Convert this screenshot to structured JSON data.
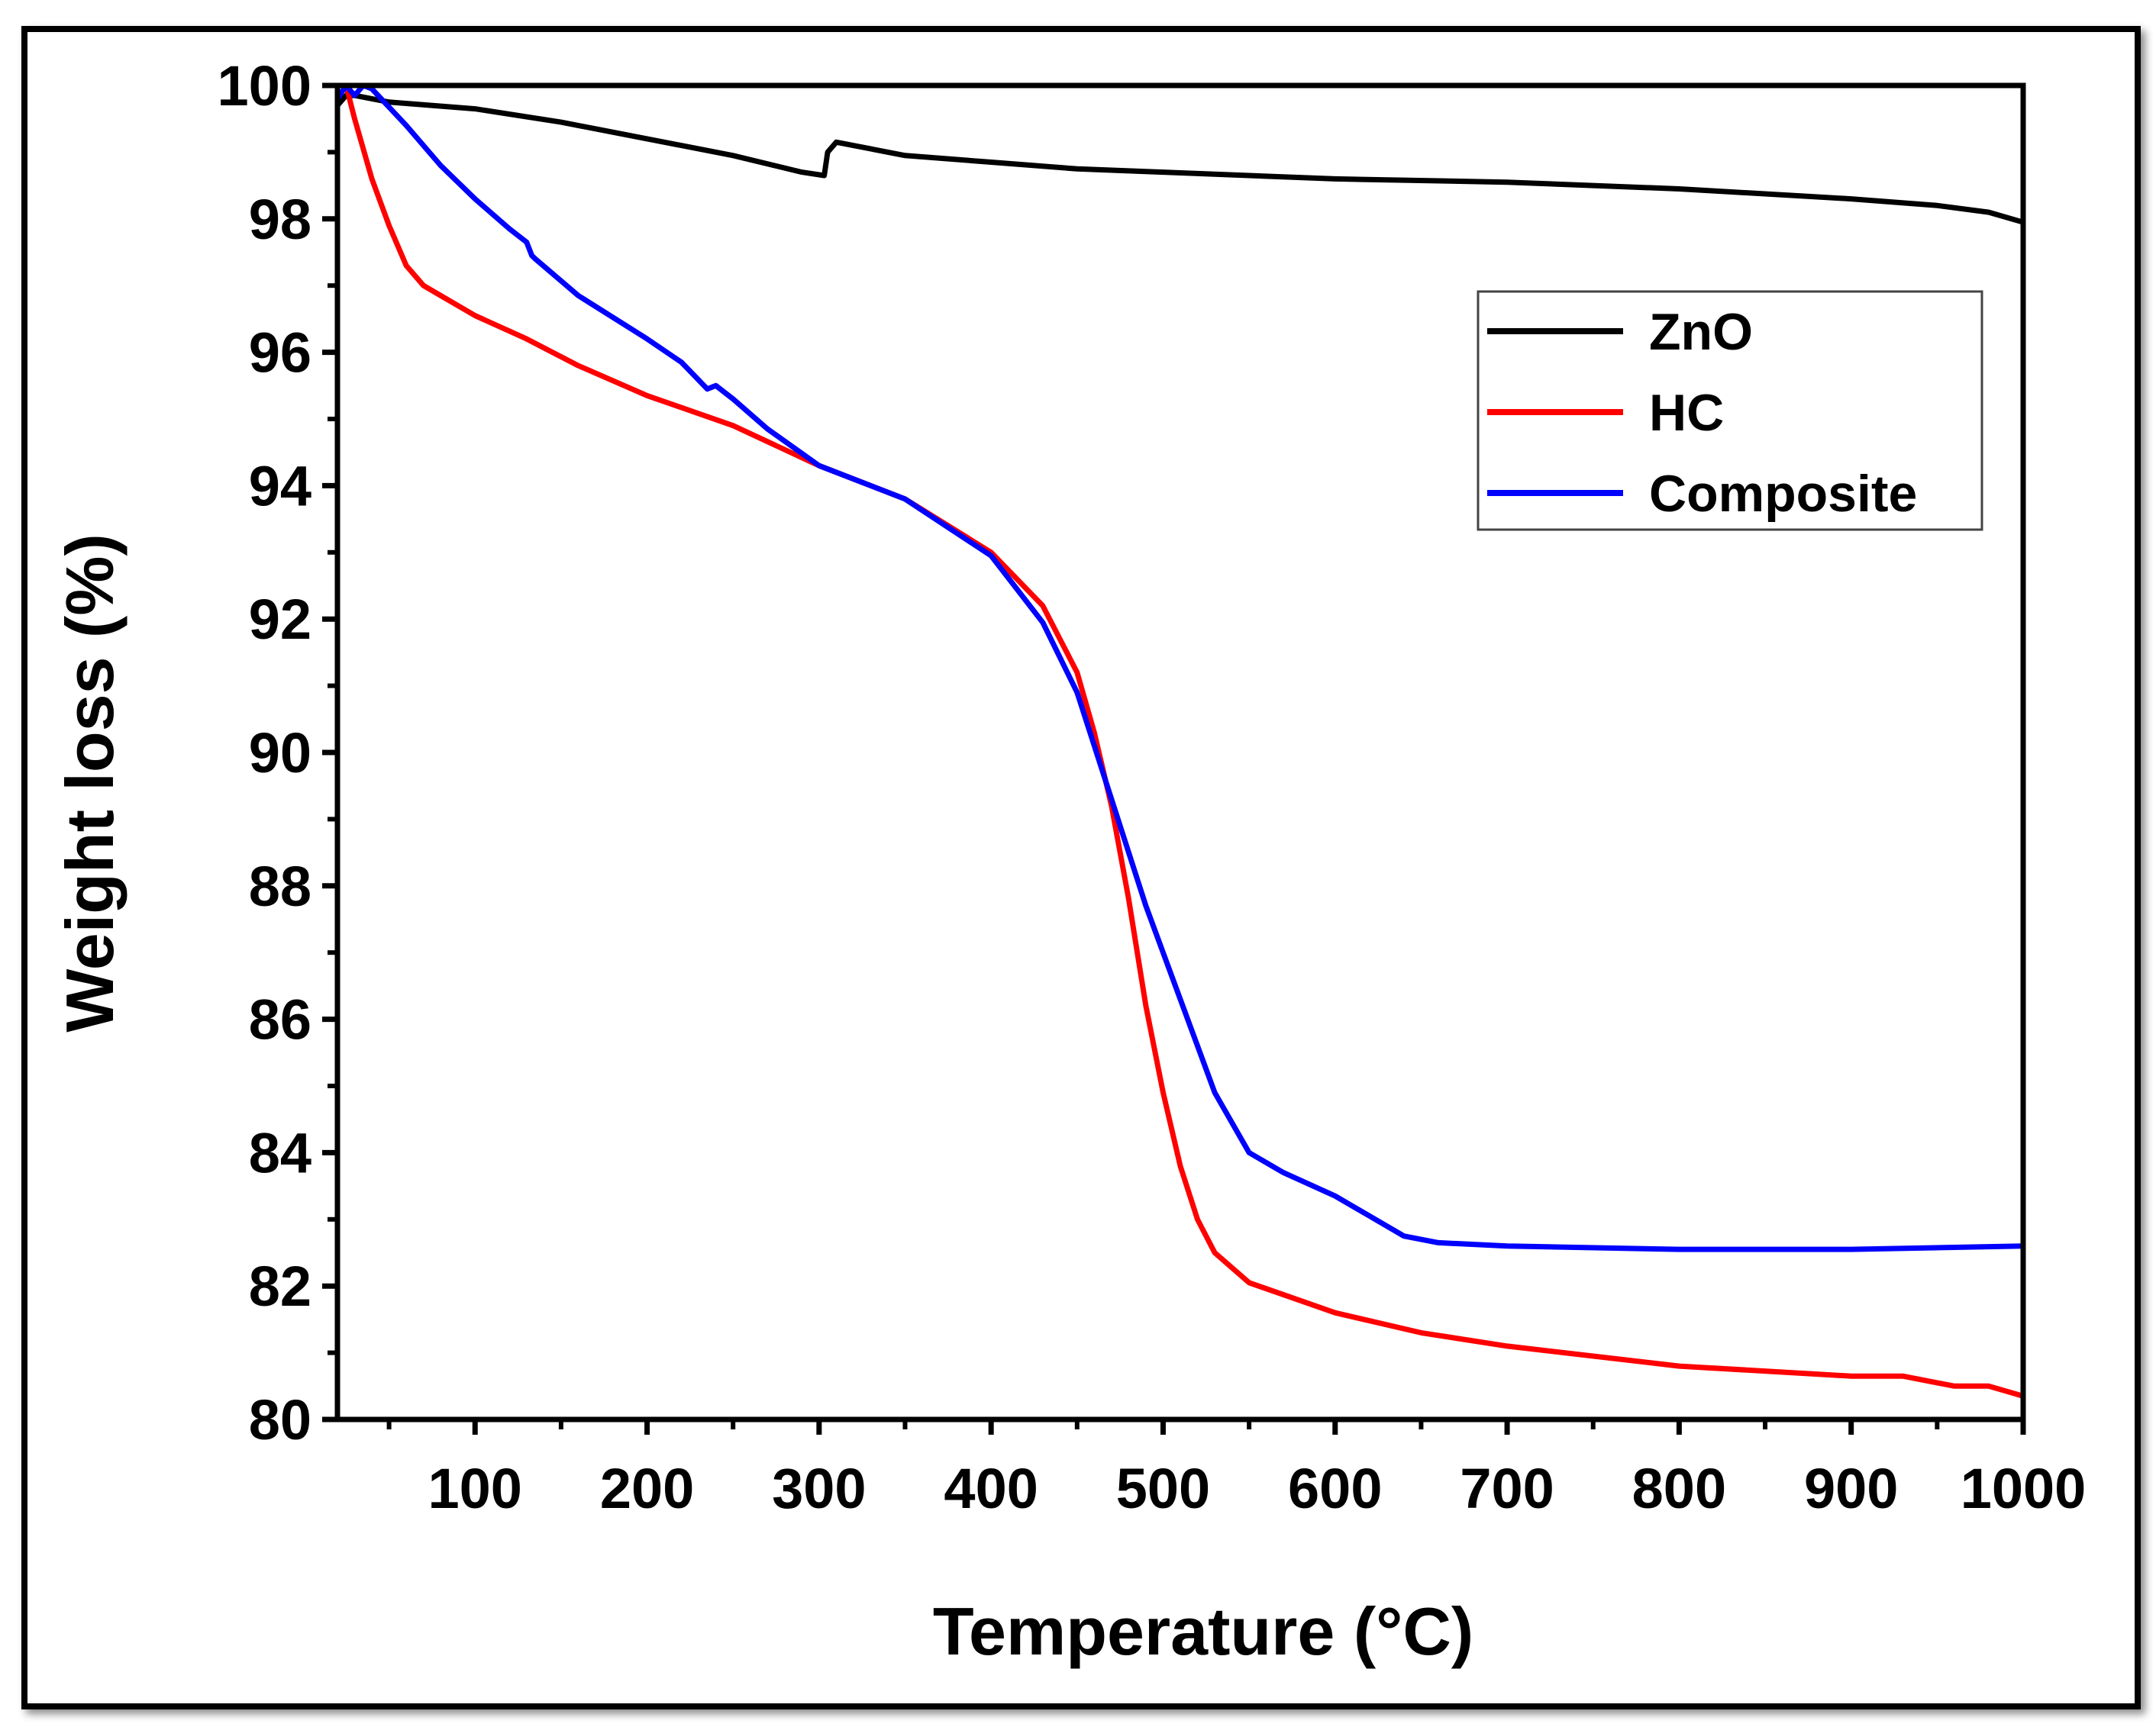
{
  "chart_data": {
    "type": "line",
    "title": "",
    "xlabel": "Temperature (°C)",
    "ylabel": "Weight loss (%)",
    "xlim": [
      20,
      1000
    ],
    "ylim": [
      80,
      100
    ],
    "xticks": [
      "100",
      "200",
      "300",
      "400",
      "500",
      "600",
      "700",
      "800",
      "900",
      "1000"
    ],
    "yticks": [
      "80",
      "82",
      "84",
      "86",
      "88",
      "90",
      "92",
      "94",
      "96",
      "98",
      "100"
    ],
    "legend_position": "top-right",
    "series": [
      {
        "name": "ZnO",
        "color": "#000000",
        "x": [
          20,
          25,
          30,
          50,
          100,
          150,
          200,
          250,
          290,
          303,
          305,
          310,
          350,
          400,
          450,
          500,
          600,
          700,
          800,
          900,
          950,
          980,
          1000
        ],
        "y": [
          99.7,
          99.85,
          99.85,
          99.75,
          99.65,
          99.45,
          99.2,
          98.95,
          98.7,
          98.65,
          99.0,
          99.15,
          98.95,
          98.85,
          98.75,
          98.7,
          98.6,
          98.55,
          98.45,
          98.3,
          98.2,
          98.1,
          97.95
        ]
      },
      {
        "name": "HC",
        "color": "#ff0000",
        "x": [
          25,
          30,
          40,
          50,
          60,
          70,
          80,
          100,
          130,
          160,
          200,
          250,
          300,
          350,
          400,
          430,
          450,
          460,
          470,
          480,
          490,
          500,
          510,
          520,
          530,
          550,
          600,
          650,
          700,
          800,
          900,
          930,
          960,
          980,
          1000
        ],
        "y": [
          100,
          99.5,
          98.6,
          97.9,
          97.3,
          97.0,
          96.85,
          96.55,
          96.2,
          95.8,
          95.35,
          94.9,
          94.3,
          93.8,
          93.0,
          92.2,
          91.2,
          90.3,
          89.2,
          87.8,
          86.2,
          84.9,
          83.8,
          83.0,
          82.5,
          82.05,
          81.6,
          81.3,
          81.1,
          80.8,
          80.65,
          80.65,
          80.5,
          80.5,
          80.35
        ]
      },
      {
        "name": "Composite",
        "color": "#0000ff",
        "x": [
          20,
          25,
          30,
          35,
          40,
          60,
          80,
          100,
          120,
          130,
          133,
          135,
          160,
          200,
          220,
          235,
          240,
          250,
          270,
          300,
          350,
          400,
          430,
          450,
          470,
          490,
          510,
          530,
          550,
          570,
          600,
          620,
          640,
          660,
          700,
          800,
          900,
          1000
        ],
        "y": [
          99.8,
          100,
          99.85,
          100,
          99.95,
          99.4,
          98.8,
          98.3,
          97.85,
          97.65,
          97.45,
          97.4,
          96.85,
          96.2,
          95.85,
          95.45,
          95.5,
          95.3,
          94.85,
          94.3,
          93.8,
          92.95,
          91.95,
          90.9,
          89.3,
          87.7,
          86.3,
          84.9,
          84.0,
          83.7,
          83.35,
          83.05,
          82.75,
          82.65,
          82.6,
          82.55,
          82.55,
          82.6
        ]
      }
    ]
  }
}
